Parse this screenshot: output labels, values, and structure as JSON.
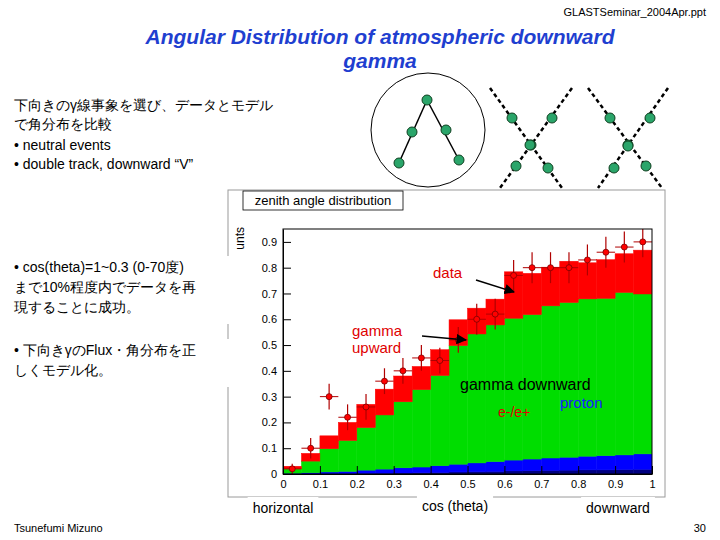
{
  "slide": {
    "header": "GLASTSeminar_2004Apr.ppt",
    "title": [
      "Angular Distribution of atmospheric downward",
      "gamma"
    ],
    "intro": [
      "下向きのγ線事象を選び、データとモデル",
      "で角分布を比較"
    ],
    "bullets": [
      "• neutral events",
      "• double track, downward “V”"
    ],
    "notes": [
      [
        "• cos(theta)=1~0.3 (0-70度)",
        "まで10%程度内でデータを再",
        "現することに成功。"
      ],
      [
        "• 下向きγのFlux・角分布を正",
        "しくモデル化。"
      ]
    ],
    "author": "Tsunefumi Mizuno",
    "page": "30"
  },
  "chart_data": {
    "type": "histogram",
    "title": "zenith angle distribution",
    "x_label": "cos (theta)",
    "y_label": "unts",
    "stacked": true,
    "bins": [
      0,
      0.05,
      0.1,
      0.15,
      0.2,
      0.25,
      0.3,
      0.35,
      0.4,
      0.45,
      0.5,
      0.55,
      0.6,
      0.65,
      0.7,
      0.75,
      0.8,
      0.85,
      0.9,
      0.95,
      1
    ],
    "xlim": [
      0,
      1
    ],
    "ylim": [
      0,
      0.95
    ],
    "xticks": [
      0,
      0.1,
      0.2,
      0.3,
      0.4,
      0.5,
      0.6,
      0.7,
      0.8,
      0.9,
      1
    ],
    "yticks": [
      0,
      0.1,
      0.2,
      0.3,
      0.4,
      0.5,
      0.6,
      0.7,
      0.8,
      0.9
    ],
    "series": [
      {
        "name": "proton",
        "type": "bar",
        "color": "#000080",
        "values": [
          0,
          0,
          0,
          0,
          0.002,
          0.003,
          0.004,
          0.005,
          0.006,
          0.008,
          0.009,
          0.01,
          0.012,
          0.013,
          0.014,
          0.015,
          0.016,
          0.016,
          0.017,
          0.018
        ]
      },
      {
        "name": "e-/e+",
        "type": "bar",
        "color": "#0000ff",
        "values": [
          0.003,
          0.005,
          0.008,
          0.01,
          0.013,
          0.016,
          0.02,
          0.022,
          0.026,
          0.03,
          0.034,
          0.038,
          0.042,
          0.045,
          0.048,
          0.05,
          0.053,
          0.055,
          0.057,
          0.06
        ]
      },
      {
        "name": "gamma downward",
        "type": "bar",
        "color": "#00dd00",
        "values": [
          0.017,
          0.045,
          0.09,
          0.12,
          0.165,
          0.21,
          0.256,
          0.3,
          0.35,
          0.46,
          0.5,
          0.53,
          0.55,
          0.56,
          0.59,
          0.6,
          0.61,
          0.61,
          0.63,
          0.62
        ]
      },
      {
        "name": "gamma upward",
        "type": "bar",
        "color": "#ff0000",
        "values": [
          0.01,
          0.03,
          0.05,
          0.07,
          0.09,
          0.1,
          0.1,
          0.09,
          0.1,
          0.1,
          0.1,
          0.1,
          0.18,
          0.16,
          0.15,
          0.16,
          0.14,
          0.15,
          0.15,
          0.17
        ]
      },
      {
        "name": "data",
        "type": "scatter",
        "color": "#ff0000",
        "marker": "circle",
        "values": [
          0.02,
          0.1,
          0.3,
          0.22,
          0.26,
          0.36,
          0.4,
          0.45,
          0.44,
          0.52,
          0.6,
          0.62,
          0.77,
          0.8,
          0.8,
          0.8,
          0.83,
          0.86,
          0.88,
          0.9
        ],
        "errors": [
          0.02,
          0.04,
          0.05,
          0.05,
          0.05,
          0.05,
          0.05,
          0.05,
          0.05,
          0.05,
          0.06,
          0.06,
          0.06,
          0.06,
          0.06,
          0.06,
          0.06,
          0.06,
          0.06,
          0.06
        ]
      }
    ],
    "annotations": [
      "horizontal",
      "downward"
    ]
  }
}
